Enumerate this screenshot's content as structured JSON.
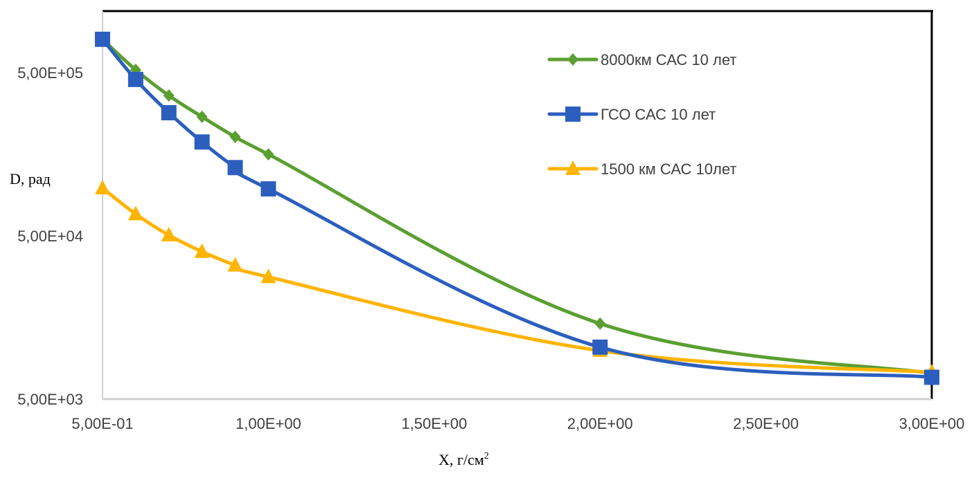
{
  "chart_data": {
    "type": "line",
    "title": "",
    "xlabel": "X, г/см",
    "xlabel_superscript": "2",
    "ylabel": "D, рад",
    "yscale": "log",
    "xlim": [
      0.5,
      3.0
    ],
    "ylim": [
      5000,
      800000
    ],
    "grid": false,
    "legend_position": "top-right",
    "x_ticks": [
      {
        "value": 0.5,
        "label": "5,00E-01"
      },
      {
        "value": 1.0,
        "label": "1,00E+00"
      },
      {
        "value": 1.5,
        "label": "1,50E+00"
      },
      {
        "value": 2.0,
        "label": "2,00E+00"
      },
      {
        "value": 2.5,
        "label": "2,50E+00"
      },
      {
        "value": 3.0,
        "label": "3,00E+00"
      }
    ],
    "y_ticks": [
      {
        "value": 500000,
        "label": "5,00E+05"
      },
      {
        "value": 50000,
        "label": "5,00E+04"
      },
      {
        "value": 5000,
        "label": "5,00E+03"
      }
    ],
    "x": [
      0.5,
      0.6,
      0.7,
      0.8,
      0.9,
      1.0,
      2.0,
      3.0
    ],
    "series": [
      {
        "name": "8000км САС 10 лет",
        "color": "#5b9f32",
        "marker": "diamond",
        "values": [
          800000,
          520000,
          362000,
          268000,
          202000,
          158000,
          14500,
          7200
        ]
      },
      {
        "name": "ГСО САС 10 лет",
        "color": "#2c5fbd",
        "marker": "square",
        "values": [
          800000,
          454000,
          284000,
          188000,
          131000,
          97000,
          10400,
          6800
        ]
      },
      {
        "name": "1500 км САС 10лет",
        "color": "#ffb400",
        "marker": "triangle",
        "values": [
          98000,
          68000,
          50500,
          40000,
          33000,
          28000,
          9900,
          7300
        ]
      }
    ]
  }
}
